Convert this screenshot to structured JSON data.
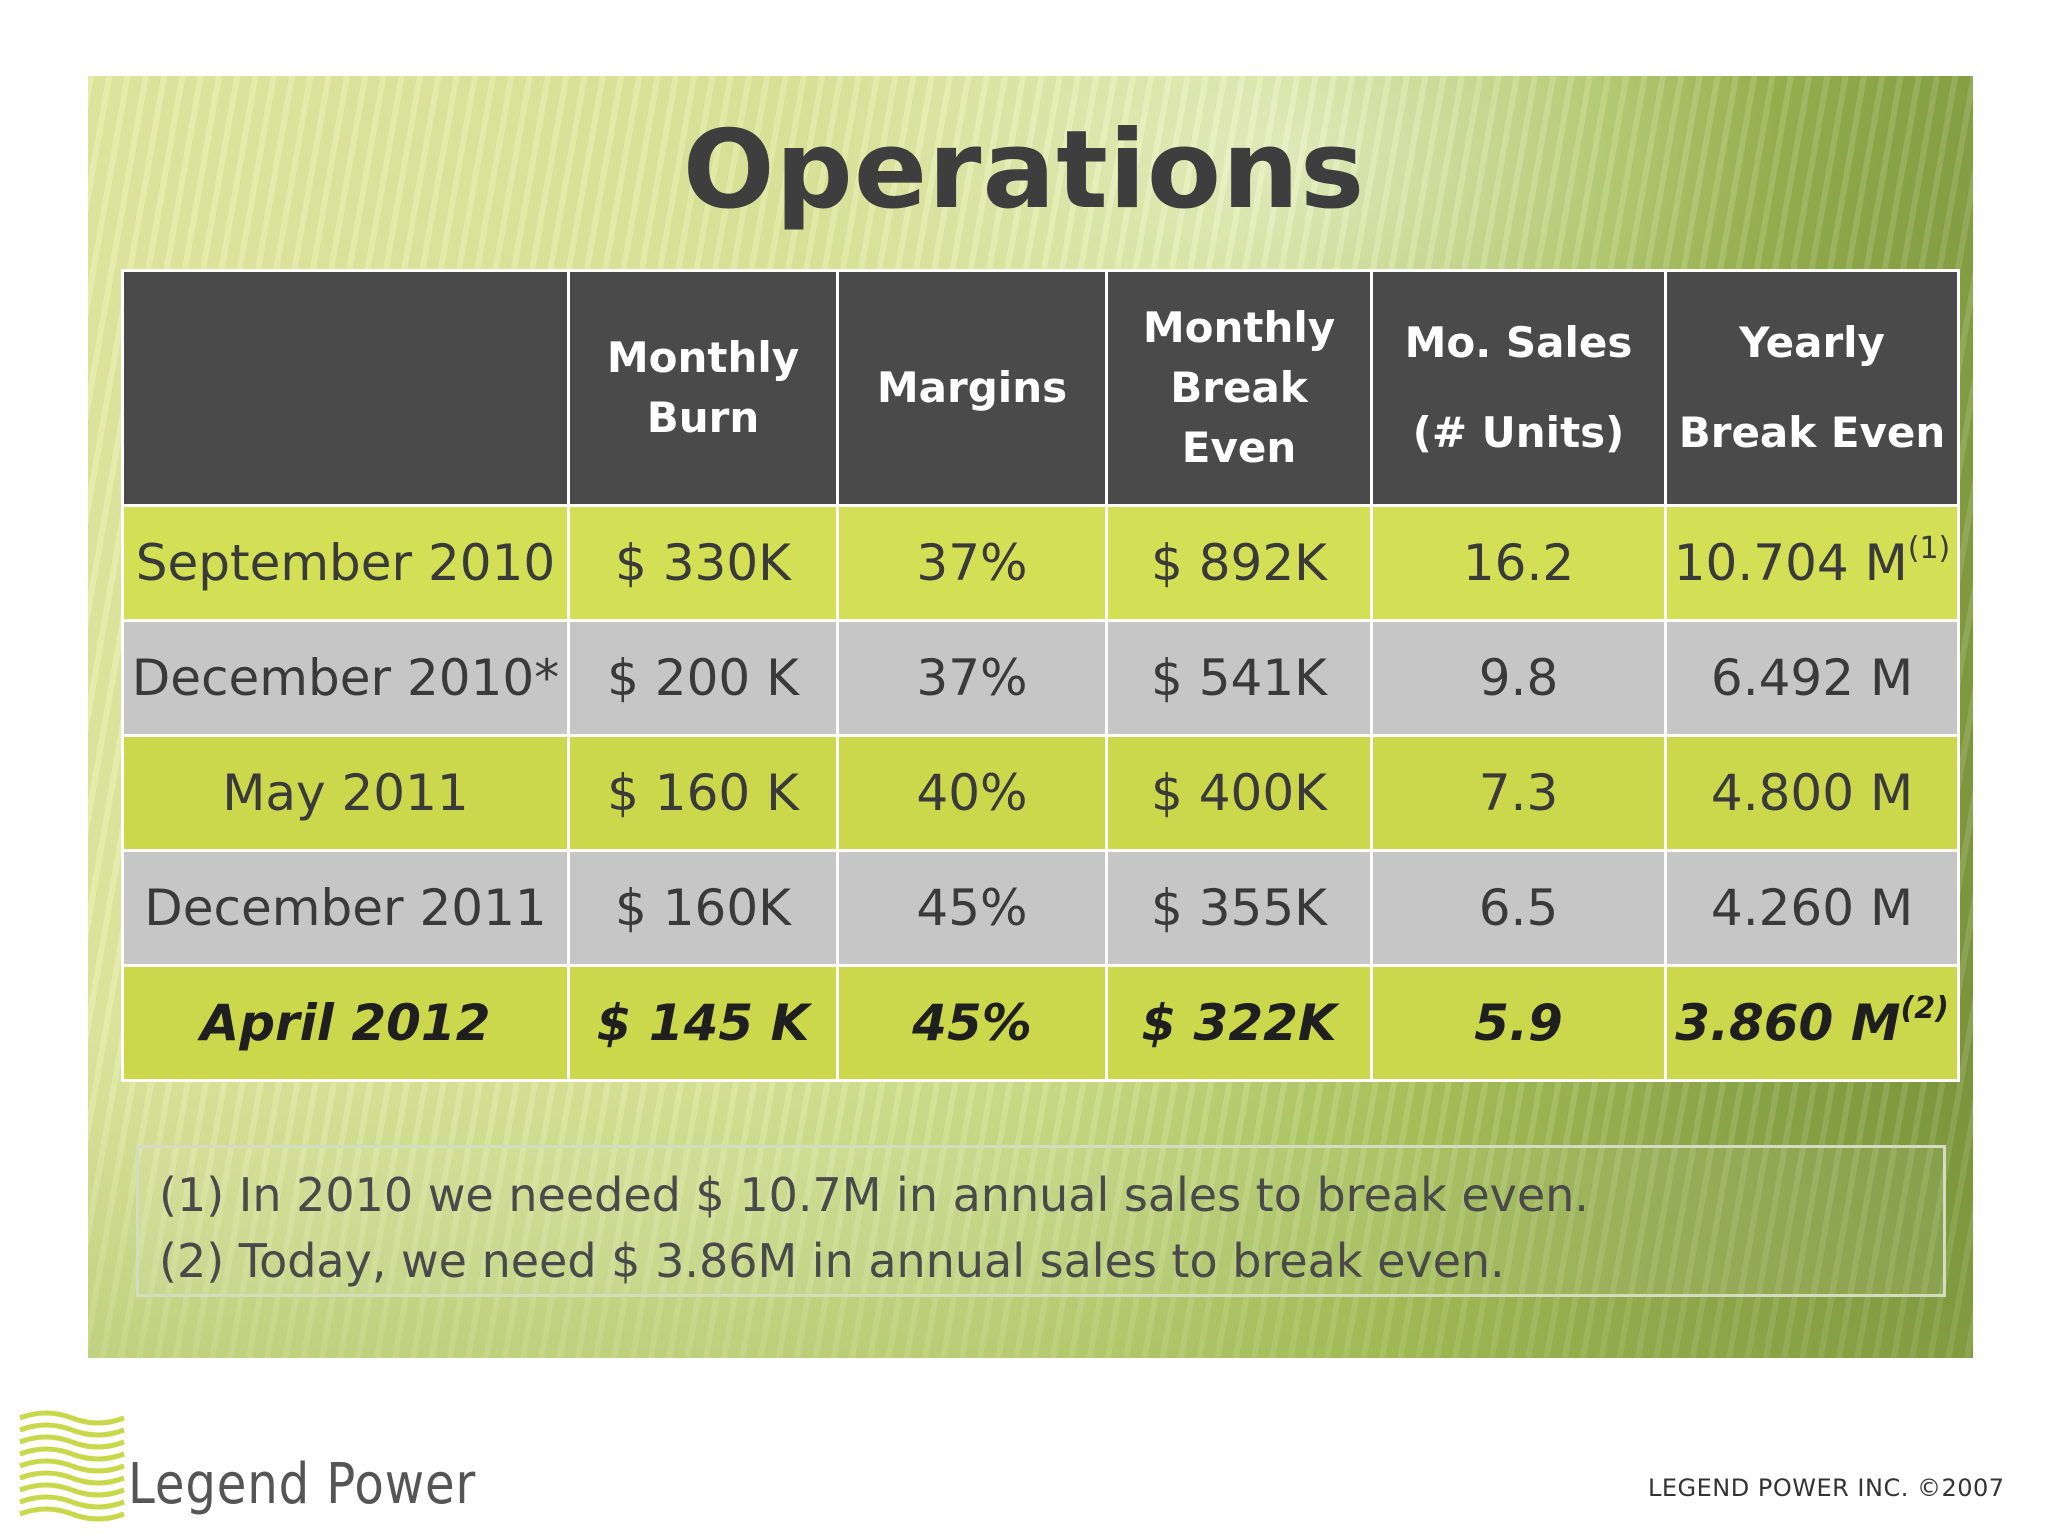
{
  "title": "Operations",
  "table": {
    "headers": {
      "col0": "",
      "col1": "Monthly Burn",
      "col2": "Margins",
      "col3": "Monthly Break Even",
      "col4_line1": "Mo. Sales",
      "col4_line2": "(# Units)",
      "col5_line1": "Yearly",
      "col5_line2": "Break Even"
    },
    "rows": [
      {
        "period": "September 2010",
        "burn": "$ 330K",
        "margin": "37%",
        "break_even": "$ 892K",
        "units": "16.2",
        "yearly": "10.704 M",
        "note": "(1)"
      },
      {
        "period": "December 2010*",
        "burn": "$ 200 K",
        "margin": "37%",
        "break_even": "$ 541K",
        "units": "9.8",
        "yearly": "6.492 M",
        "note": ""
      },
      {
        "period": "May 2011",
        "burn": "$ 160 K",
        "margin": "40%",
        "break_even": "$ 400K",
        "units": "7.3",
        "yearly": "4.800 M",
        "note": ""
      },
      {
        "period": "December 2011",
        "burn": "$ 160K",
        "margin": "45%",
        "break_even": "$ 355K",
        "units": "6.5",
        "yearly": "4.260 M",
        "note": ""
      },
      {
        "period": "April 2012",
        "burn": "$ 145 K",
        "margin": "45%",
        "break_even": "$ 322K",
        "units": "5.9",
        "yearly": "3.860 M",
        "note": "(2)"
      }
    ]
  },
  "notes": {
    "line1": "(1) In 2010 we needed $ 10.7M in annual sales to break even.",
    "line2": "(2) Today, we need $ 3.86M in annual sales to break even."
  },
  "footer": {
    "logo_text": "Legend Power",
    "company": "LEGEND POWER INC.",
    "copyright": "©2007"
  },
  "colors": {
    "header_bg": "#4a4a4a",
    "row_green": "#ccd84c",
    "row_gray": "#c6c6c6",
    "title": "#3e3e3e"
  }
}
